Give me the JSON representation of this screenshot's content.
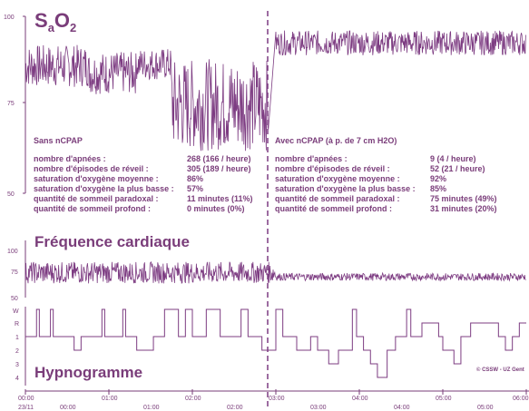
{
  "colors": {
    "trace": "#7d3c82",
    "text": "#7a3d7a",
    "axis": "#7a3d7a"
  },
  "panels": {
    "sao2": {
      "title_main": "S",
      "title_sub1": "a",
      "title_main2": "O",
      "title_sub2": "2",
      "yticks": [
        "100",
        "75",
        "50"
      ],
      "ylim": [
        50,
        100
      ]
    },
    "hr": {
      "title": "Fréquence cardiaque",
      "yticks": [
        "100",
        "75",
        "50"
      ],
      "ylim": [
        50,
        100
      ]
    },
    "hypno": {
      "title": "Hypnogramme",
      "stages": [
        "W",
        "R",
        "1",
        "2",
        "3",
        "4"
      ]
    }
  },
  "left_block": {
    "heading": "Sans nCPAP",
    "rows": [
      {
        "label": "nombre d'apnées :",
        "value": "268 (166 / heure)"
      },
      {
        "label": "nombre d'épisodes de réveil :",
        "value": "305 (189 / heure)"
      },
      {
        "label": "saturation d'oxygène moyenne :",
        "value": "86%"
      },
      {
        "label": "saturation d'oxygène la plus basse :",
        "value": "57%"
      },
      {
        "label": "quantité de sommeil paradoxal :",
        "value": "11 minutes (11%)"
      },
      {
        "label": "quantité de sommeil profond :",
        "value": "0 minutes (0%)"
      }
    ]
  },
  "right_block": {
    "heading": "Avec nCPAP (à p. de 7 cm H2O)",
    "rows": [
      {
        "label": "nombre d'apnées :",
        "value": "9 (4 / heure)"
      },
      {
        "label": "nombre d'épisodes de réveil :",
        "value": "52 (21 / heure)"
      },
      {
        "label": "saturation d'oxygène moyenne :",
        "value": "92%"
      },
      {
        "label": "saturation d'oxygène la plus basse :",
        "value": "85%"
      },
      {
        "label": "quantité de sommeil paradoxal :",
        "value": "75 minutes (49%)"
      },
      {
        "label": "quantité de sommeil profond :",
        "value": "31 minutes (20%)"
      }
    ]
  },
  "copyright": "© CSSW - UZ Gent",
  "time_axis": {
    "major": [
      "00:00",
      "01:00",
      "02:00",
      "03:00",
      "04:00",
      "05:00",
      "06:00"
    ],
    "minor": [
      "00:00",
      "01:00",
      "02:00",
      "03:00",
      "04:00",
      "05:00"
    ],
    "date": "23/11"
  },
  "chart_data": [
    {
      "type": "line",
      "title": "SaO2",
      "ylim": [
        50,
        100
      ],
      "yticks": [
        50,
        75,
        100
      ],
      "segments": [
        {
          "x_start": "00:00",
          "x_end": "00:45",
          "y_range": [
            80,
            92
          ]
        },
        {
          "x_start": "00:45",
          "x_end": "01:20",
          "y_range": [
            78,
            90
          ]
        },
        {
          "x_start": "01:20",
          "x_end": "01:45",
          "y_range": [
            82,
            91
          ]
        },
        {
          "x_start": "01:45",
          "x_end": "02:55",
          "y_range": [
            62,
            88
          ]
        },
        {
          "x_start": "03:00",
          "x_end": "06:00",
          "y_range": [
            89,
            96
          ]
        }
      ]
    },
    {
      "type": "line",
      "title": "Fréquence cardiaque",
      "ylim": [
        50,
        100
      ],
      "yticks": [
        50,
        75,
        100
      ],
      "segments": [
        {
          "x_start": "00:00",
          "x_end": "03:00",
          "y_range": [
            65,
            88
          ]
        },
        {
          "x_start": "03:00",
          "x_end": "06:00",
          "y_range": [
            68,
            76
          ]
        }
      ]
    },
    {
      "type": "line",
      "title": "Hypnogramme",
      "stages": [
        "W",
        "R",
        "1",
        "2",
        "3",
        "4"
      ],
      "steps": [
        [
          "00:00",
          "1"
        ],
        [
          "00:08",
          "W"
        ],
        [
          "00:10",
          "1"
        ],
        [
          "00:18",
          "W"
        ],
        [
          "00:20",
          "1"
        ],
        [
          "00:35",
          "2"
        ],
        [
          "00:40",
          "1"
        ],
        [
          "00:55",
          "W"
        ],
        [
          "00:57",
          "1"
        ],
        [
          "01:10",
          "W"
        ],
        [
          "01:12",
          "1"
        ],
        [
          "01:20",
          "2"
        ],
        [
          "01:32",
          "1"
        ],
        [
          "01:40",
          "W"
        ],
        [
          "01:50",
          "1"
        ],
        [
          "01:55",
          "W"
        ],
        [
          "02:00",
          "1"
        ],
        [
          "02:10",
          "W"
        ],
        [
          "02:20",
          "1"
        ],
        [
          "02:35",
          "W"
        ],
        [
          "02:40",
          "1"
        ],
        [
          "02:50",
          "2"
        ],
        [
          "03:00",
          "W"
        ],
        [
          "03:05",
          "1"
        ],
        [
          "03:15",
          "2"
        ],
        [
          "03:25",
          "1"
        ],
        [
          "03:30",
          "2"
        ],
        [
          "03:38",
          "3"
        ],
        [
          "03:45",
          "2"
        ],
        [
          "03:55",
          "W"
        ],
        [
          "03:58",
          "1"
        ],
        [
          "04:03",
          "2"
        ],
        [
          "04:08",
          "3"
        ],
        [
          "04:13",
          "4"
        ],
        [
          "04:20",
          "2"
        ],
        [
          "04:26",
          "1"
        ],
        [
          "04:34",
          "W"
        ],
        [
          "04:37",
          "1"
        ],
        [
          "04:45",
          "R"
        ],
        [
          "04:57",
          "1"
        ],
        [
          "05:00",
          "2"
        ],
        [
          "05:08",
          "3"
        ],
        [
          "05:13",
          "1"
        ],
        [
          "05:20",
          "R"
        ],
        [
          "05:40",
          "1"
        ],
        [
          "05:45",
          "2"
        ],
        [
          "05:50",
          "1"
        ],
        [
          "05:55",
          "R"
        ],
        [
          "06:00",
          "R"
        ]
      ]
    }
  ]
}
